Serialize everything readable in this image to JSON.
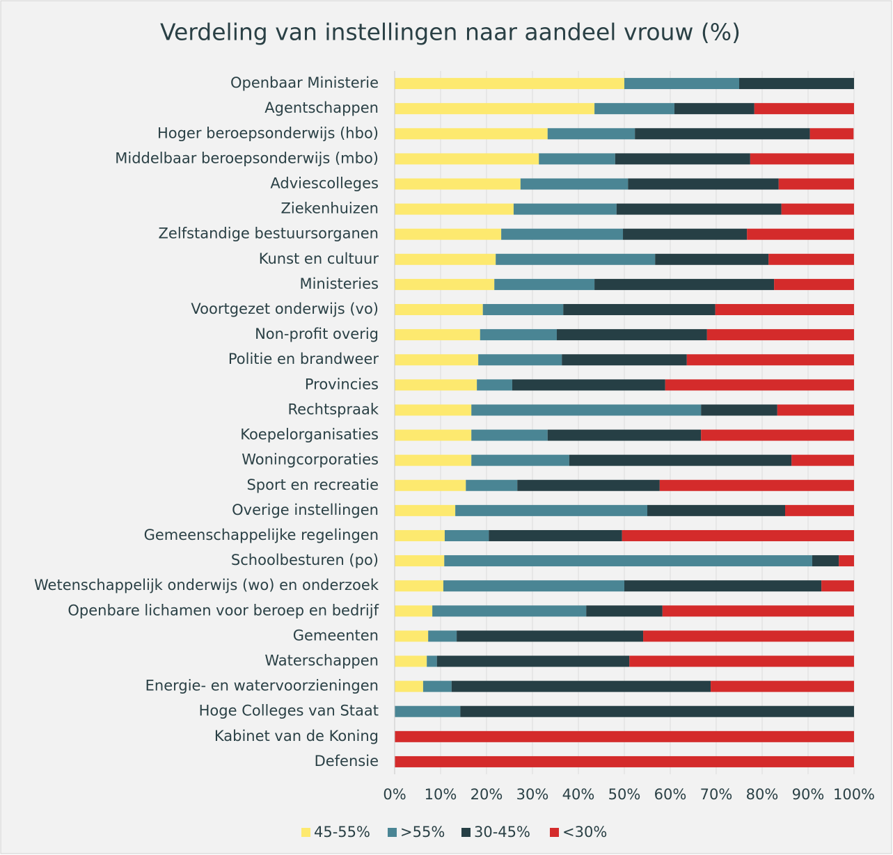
{
  "chart_data": {
    "type": "stacked-bar-horizontal",
    "title": "Verdeling van instellingen naar aandeel vrouw (%)",
    "categories": [
      "Openbaar Ministerie",
      "Agentschappen",
      "Hoger beroepsonderwijs (hbo)",
      "Middelbaar beroepsonderwijs (mbo)",
      "Adviescolleges",
      "Ziekenhuizen",
      "Zelfstandige bestuursorganen",
      "Kunst en cultuur",
      "Ministeries",
      "Voortgezet onderwijs (vo)",
      "Non-profit overig",
      "Politie en brandweer",
      "Provincies",
      "Rechtspraak",
      "Koepelorganisaties",
      "Woningcorporaties",
      "Sport en recreatie",
      "Overige instellingen",
      "Gemeenschappelijke regelingen",
      "Schoolbesturen (po)",
      "Wetenschappelijk onderwijs (wo) en onderzoek",
      "Openbare lichamen voor beroep en bedrijf",
      "Gemeenten",
      "Waterschappen",
      "Energie- en watervoorzieningen",
      "Hoge Colleges van Staat",
      "Kabinet van de Koning",
      "Defensie"
    ],
    "series": [
      {
        "name": "45-55%",
        "color": "#fde96f",
        "values": [
          50,
          43.5,
          33.3,
          31.4,
          27.4,
          25.9,
          23.2,
          22.0,
          21.7,
          19.2,
          18.6,
          18.2,
          17.9,
          16.7,
          16.7,
          16.7,
          15.5,
          13.2,
          10.9,
          10.8,
          10.6,
          8.2,
          7.3,
          7.0,
          6.2,
          0,
          0,
          0
        ]
      },
      {
        "name": ">55%",
        "color": "#4a8594",
        "values": [
          25,
          17.4,
          19.0,
          16.6,
          23.4,
          22.4,
          26.5,
          34.7,
          21.8,
          17.5,
          16.7,
          18.2,
          7.7,
          50,
          16.6,
          21.3,
          11.2,
          41.8,
          9.6,
          80.1,
          39.4,
          33.5,
          6.2,
          2.2,
          6.2,
          14.3,
          0,
          0
        ]
      },
      {
        "name": "30-45%",
        "color": "#263f45",
        "values": [
          25,
          17.4,
          38.1,
          29.4,
          32.8,
          35.9,
          27.0,
          24.7,
          39.1,
          33.1,
          32.7,
          27.2,
          33.3,
          16.6,
          33.4,
          48.4,
          31.0,
          30.0,
          29.0,
          5.8,
          42.9,
          16.6,
          40.6,
          41.9,
          56.4,
          85.7,
          0,
          0
        ]
      },
      {
        "name": "<30%",
        "color": "#d42b2b",
        "values": [
          0,
          21.7,
          9.5,
          22.6,
          16.4,
          15.8,
          23.3,
          18.6,
          17.4,
          30.2,
          32.0,
          36.4,
          41.1,
          16.7,
          33.3,
          13.6,
          42.3,
          15.0,
          50.5,
          3.3,
          7.1,
          41.7,
          45.9,
          48.9,
          31.2,
          0,
          100,
          100
        ]
      }
    ],
    "xlim": [
      0,
      100
    ],
    "xticks": [
      {
        "value": 0,
        "label": "0%"
      },
      {
        "value": 10,
        "label": "10%"
      },
      {
        "value": 20,
        "label": "20%"
      },
      {
        "value": 30,
        "label": "30%"
      },
      {
        "value": 40,
        "label": "40%"
      },
      {
        "value": 50,
        "label": "50%"
      },
      {
        "value": 60,
        "label": "60%"
      },
      {
        "value": 70,
        "label": "70%"
      },
      {
        "value": 80,
        "label": "80%"
      },
      {
        "value": 90,
        "label": "90%"
      },
      {
        "value": 100,
        "label": "100%"
      }
    ],
    "grid": true,
    "legend": "bottom"
  }
}
